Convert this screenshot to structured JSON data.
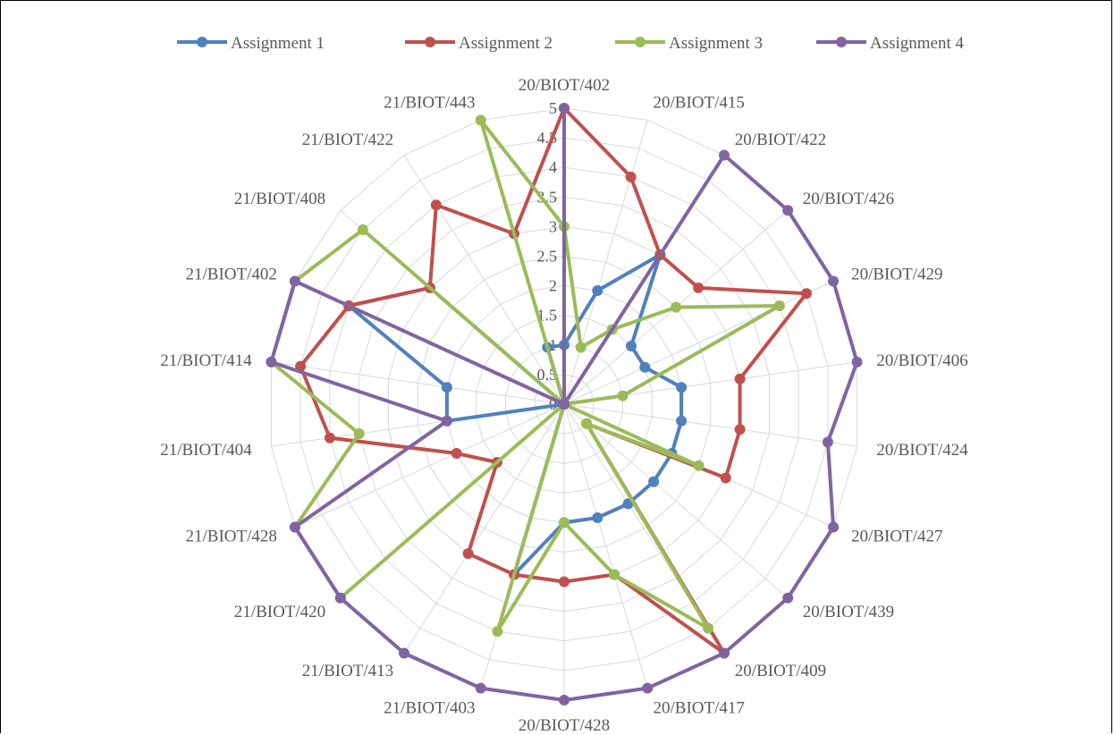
{
  "chart_data": {
    "type": "radar",
    "title": "",
    "categories": [
      "20/BIOT/402",
      "20/BIOT/415",
      "20/BIOT/422",
      "20/BIOT/426",
      "20/BIOT/429",
      "20/BIOT/406",
      "20/BIOT/424",
      "20/BIOT/427",
      "20/BIOT/439",
      "20/BIOT/409",
      "20/BIOT/417",
      "20/BIOT/428",
      "21/BIOT/403",
      "21/BIOT/413",
      "21/BIOT/420",
      "21/BIOT/428",
      "21/BIOT/404",
      "21/BIOT/414",
      "21/BIOT/402",
      "21/BIOT/408",
      "21/BIOT/422",
      "21/BIOT/443"
    ],
    "rlim": [
      0,
      5
    ],
    "ticks": [
      "0",
      "0.5",
      "1",
      "1.5",
      "2",
      "2.5",
      "3",
      "3.5",
      "4",
      "4.5",
      "5"
    ],
    "grid": true,
    "legend_position": "top",
    "series": [
      {
        "name": "Assignment 1",
        "color": "#4F81BD",
        "values": [
          1,
          2,
          3,
          1.5,
          1.5,
          2,
          2,
          2,
          2,
          2,
          2,
          2,
          3,
          0,
          0,
          0,
          2,
          2,
          4,
          3,
          0,
          1
        ]
      },
      {
        "name": "Assignment 2",
        "color": "#C0504D",
        "values": [
          5,
          4,
          3,
          3,
          4.5,
          3,
          3,
          3,
          0.5,
          5,
          3,
          3,
          3,
          3,
          1.5,
          2,
          4,
          4.5,
          4,
          3,
          4,
          3
        ]
      },
      {
        "name": "Assignment 3",
        "color": "#9BBB59",
        "values": [
          3,
          1,
          1.5,
          2.5,
          4,
          1,
          0,
          2.5,
          0.5,
          4.5,
          3,
          2,
          4,
          0,
          5,
          5,
          3.5,
          5,
          5,
          4.5,
          0,
          5
        ]
      },
      {
        "name": "Assignment 4",
        "color": "#8064A2",
        "values": [
          5,
          0,
          5,
          5,
          5,
          5,
          4.5,
          5,
          5,
          5,
          5,
          5,
          5,
          5,
          5,
          5,
          2,
          5,
          5,
          0,
          0,
          0
        ]
      }
    ]
  }
}
